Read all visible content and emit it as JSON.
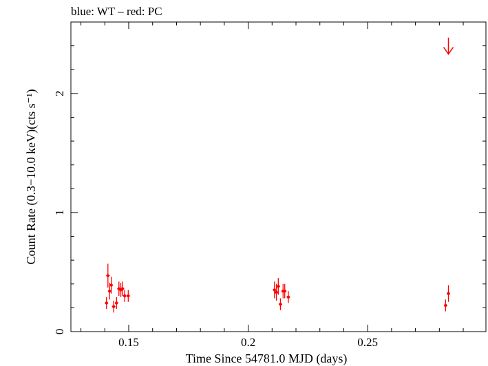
{
  "chart_data": {
    "type": "scatter",
    "title": "blue: WT – red: PC",
    "xlabel": "Time Since 54781.0 MJD (days)",
    "ylabel": "Count Rate (0.3−10.0 keV)(cts s⁻¹)",
    "xlim": [
      0.1258,
      0.2995
    ],
    "ylim": [
      0,
      2.6
    ],
    "x_ticks": [
      {
        "value": 0.15,
        "label": "0.15"
      },
      {
        "value": 0.2,
        "label": "0.2"
      },
      {
        "value": 0.25,
        "label": "0.25"
      }
    ],
    "y_ticks": [
      {
        "value": 0,
        "label": "0"
      },
      {
        "value": 1,
        "label": "1"
      },
      {
        "value": 2,
        "label": "2"
      }
    ],
    "grid": false,
    "series": [
      {
        "color": "#ff0000",
        "points": [
          {
            "x": 0.1407,
            "y": 0.24,
            "yerr": 0.05
          },
          {
            "x": 0.1413,
            "y": 0.47,
            "yerr": 0.1
          },
          {
            "x": 0.142,
            "y": 0.34,
            "yerr": 0.07
          },
          {
            "x": 0.1427,
            "y": 0.39,
            "yerr": 0.07
          },
          {
            "x": 0.1437,
            "y": 0.21,
            "yerr": 0.05
          },
          {
            "x": 0.1449,
            "y": 0.24,
            "yerr": 0.05
          },
          {
            "x": 0.1459,
            "y": 0.36,
            "yerr": 0.06
          },
          {
            "x": 0.1467,
            "y": 0.35,
            "yerr": 0.06
          },
          {
            "x": 0.1474,
            "y": 0.36,
            "yerr": 0.06
          },
          {
            "x": 0.1483,
            "y": 0.3,
            "yerr": 0.05
          },
          {
            "x": 0.1498,
            "y": 0.3,
            "yerr": 0.05
          },
          {
            "x": 0.211,
            "y": 0.35,
            "yerr": 0.07
          },
          {
            "x": 0.2118,
            "y": 0.33,
            "yerr": 0.07
          },
          {
            "x": 0.2126,
            "y": 0.38,
            "yerr": 0.07
          },
          {
            "x": 0.2135,
            "y": 0.23,
            "yerr": 0.05
          },
          {
            "x": 0.2146,
            "y": 0.34,
            "yerr": 0.06
          },
          {
            "x": 0.2153,
            "y": 0.34,
            "yerr": 0.06
          },
          {
            "x": 0.2168,
            "y": 0.29,
            "yerr": 0.05
          },
          {
            "x": 0.2826,
            "y": 0.22,
            "yerr": 0.05
          },
          {
            "x": 0.2838,
            "y": 0.32,
            "yerr": 0.07
          }
        ],
        "upper_limits": [
          {
            "x": 0.2838,
            "y": 2.33
          }
        ]
      }
    ]
  }
}
